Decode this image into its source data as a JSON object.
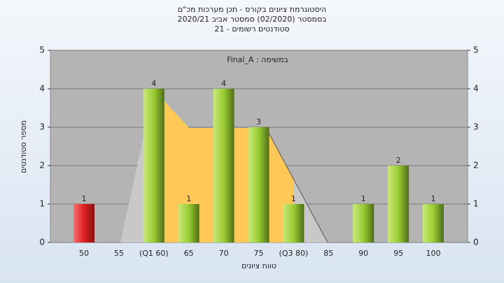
{
  "chart_data": {
    "type": "bar",
    "title": [
      "היסטוגרמת ציונים בקורס - תכן מערכות מכ\"ם",
      "בסמסטר  (02/2020)  סמסטר אביב 2020/21",
      "סטודנטים רשומים - 21"
    ],
    "annotation": "במשימה : Final_A",
    "x_label": "טווח ציונים",
    "y_label": "מספר סטודנטים",
    "categories": [
      "50",
      "55",
      "(Q1 60)",
      "65",
      "70",
      "75",
      "(Q3 80)",
      "85",
      "90",
      "95",
      "100"
    ],
    "values": [
      1,
      0,
      4,
      1,
      4,
      3,
      1,
      0,
      1,
      2,
      1
    ],
    "colors": [
      "#e02020",
      "#9acd32",
      "#9acd32",
      "#9acd32",
      "#9acd32",
      "#9acd32",
      "#9acd32",
      "#9acd32",
      "#9acd32",
      "#9acd32",
      "#9acd32"
    ],
    "ylim": [
      0,
      5
    ],
    "yticks": [
      0,
      1,
      2,
      3,
      4,
      5
    ],
    "grid": true
  }
}
